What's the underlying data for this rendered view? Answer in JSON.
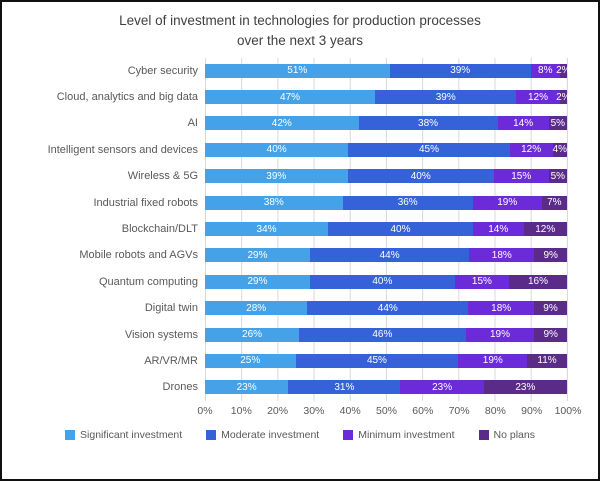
{
  "title": "Level of investment in technologies for production processes over the next 3 years",
  "chart_data": {
    "type": "bar",
    "orientation": "horizontal",
    "stacked": true,
    "title": "Level of investment in technologies for production processes over the next 3 years",
    "categories": [
      "Cyber security",
      "Cloud, analytics and big data",
      "AI",
      "Intelligent sensors and devices",
      "Wireless & 5G",
      "Industrial fixed robots",
      "Blockchain/DLT",
      "Mobile robots and AGVs",
      "Quantum computing",
      "Digital twin",
      "Vision systems",
      "AR/VR/MR",
      "Drones"
    ],
    "series": [
      {
        "name": "Significant investment",
        "color": "#45A2E8",
        "values": [
          51,
          47,
          42,
          40,
          39,
          38,
          34,
          29,
          29,
          28,
          26,
          25,
          23
        ]
      },
      {
        "name": "Moderate investment",
        "color": "#3562D8",
        "values": [
          39,
          39,
          38,
          45,
          40,
          36,
          40,
          44,
          40,
          44,
          46,
          45,
          31
        ]
      },
      {
        "name": "Minimum investment",
        "color": "#6C2BD9",
        "values": [
          8,
          12,
          14,
          12,
          15,
          19,
          14,
          18,
          15,
          18,
          19,
          19,
          23
        ]
      },
      {
        "name": "No plans",
        "color": "#5B2B8A",
        "values": [
          2,
          2,
          5,
          4,
          5,
          7,
          12,
          9,
          16,
          9,
          9,
          11,
          23
        ]
      }
    ],
    "x_ticks": [
      "0%",
      "10%",
      "20%",
      "30%",
      "40%",
      "50%",
      "60%",
      "70%",
      "80%",
      "90%",
      "100%"
    ],
    "xlim": [
      0,
      100
    ],
    "value_suffix": "%",
    "data_labels": "inside-center-white",
    "grid": "vertical",
    "legend_position": "bottom"
  }
}
